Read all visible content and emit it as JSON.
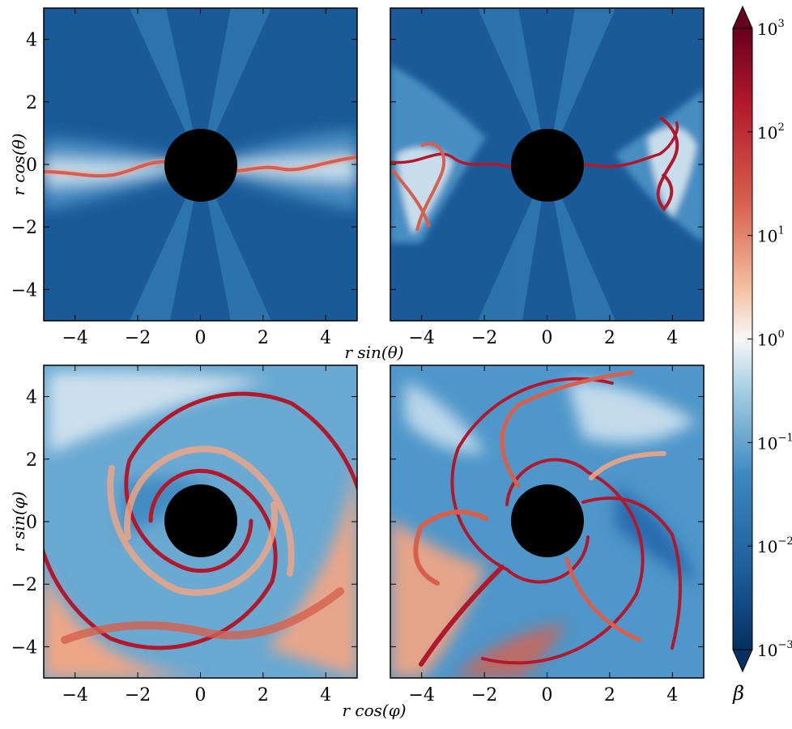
{
  "chart_data": [
    {
      "type": "heatmap",
      "panel": "top-left",
      "xlabel": "",
      "ylabel": "r cos(θ)",
      "xlim": [
        -5,
        5
      ],
      "ylim": [
        -5,
        5
      ],
      "xticks": [
        "−4",
        "−2",
        "0",
        "2",
        "4"
      ],
      "yticks": [
        "4",
        "2",
        "0",
        "−2",
        "−4"
      ],
      "background_level_log10": -1.6,
      "features": [
        {
          "kind": "thin high-β current sheet along the equator",
          "peak_log10_beta": 2
        }
      ],
      "central_disk_radius": 1.15
    },
    {
      "type": "heatmap",
      "panel": "top-right",
      "xlabel": "r sin(θ)",
      "ylabel": "",
      "xlim": [
        -5,
        5
      ],
      "ylim": [
        -5,
        5
      ],
      "xticks": [
        "−4",
        "−2",
        "0",
        "2",
        "4"
      ],
      "yticks": [],
      "background_level_log10": -1.6,
      "features": [
        {
          "kind": "turbulent high-β equatorial sheet with plumes at x≈±3.5",
          "peak_log10_beta": 2
        }
      ],
      "central_disk_radius": 1.15
    },
    {
      "type": "heatmap",
      "panel": "bottom-left",
      "xlabel": "",
      "ylabel": "r sin(φ)",
      "xlim": [
        -5,
        5
      ],
      "ylim": [
        -5,
        5
      ],
      "xticks": [
        "−4",
        "−2",
        "0",
        "2",
        "4"
      ],
      "yticks": [
        "4",
        "2",
        "0",
        "−2",
        "−4"
      ],
      "background_level_log10": -0.5,
      "features": [
        {
          "kind": "two-armed spiral of high β",
          "peak_log10_beta": 1.5
        }
      ],
      "central_disk_radius": 1.15
    },
    {
      "type": "heatmap",
      "panel": "bottom-right",
      "xlabel": "r cos(φ)",
      "ylabel": "",
      "xlim": [
        -5,
        5
      ],
      "ylim": [
        -5,
        5
      ],
      "xticks": [
        "−4",
        "−2",
        "0",
        "2",
        "4"
      ],
      "yticks": [],
      "background_level_log10": -0.8,
      "features": [
        {
          "kind": "multi-armed turbulent spiral of high β",
          "peak_log10_beta": 2
        }
      ],
      "central_disk_radius": 1.15
    }
  ],
  "colorbar": {
    "label": "β",
    "scale": "log",
    "range": [
      -3,
      3
    ],
    "colormap": "RdBu_r",
    "ticks": [
      {
        "value": 3,
        "base": "10",
        "exp": "3"
      },
      {
        "value": 2,
        "base": "10",
        "exp": "2"
      },
      {
        "value": 1,
        "base": "10",
        "exp": "1"
      },
      {
        "value": 0,
        "base": "10",
        "exp": "0"
      },
      {
        "value": -1,
        "base": "10",
        "exp": "−1"
      },
      {
        "value": -2,
        "base": "10",
        "exp": "−2"
      },
      {
        "value": -3,
        "base": "10",
        "exp": "−3"
      }
    ]
  },
  "colors": {
    "very_low": "#053061",
    "low": "#2166ac",
    "mid_low": "#92c5de",
    "neutral": "#f7f7f7",
    "mid_high": "#f4a582",
    "high": "#d6604d",
    "very_high": "#67001f",
    "hole": "#000000"
  }
}
